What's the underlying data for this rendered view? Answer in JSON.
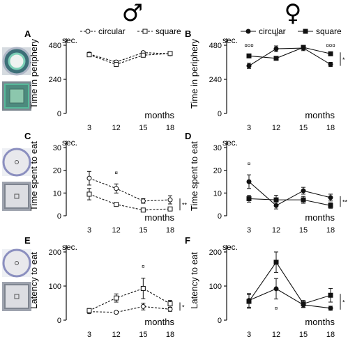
{
  "header": {
    "male_symbol": "♂",
    "female_symbol": "♀"
  },
  "chart_data": [
    {
      "panel": "A",
      "type": "line",
      "ylabel": "Time in periphery",
      "unit_label": "sec.",
      "xlabel": "months",
      "x": [
        3,
        12,
        15,
        18
      ],
      "yticks": [
        0,
        240,
        480
      ],
      "ylim": [
        0,
        480
      ],
      "legend": "top",
      "series": [
        {
          "name": "circular",
          "style": "dashed",
          "marker": "open-circle",
          "values": [
            418,
            362,
            428,
            420
          ],
          "err": [
            12,
            12,
            10,
            8
          ]
        },
        {
          "name": "square",
          "style": "dashed",
          "marker": "open-square",
          "values": [
            413,
            345,
            410,
            422
          ],
          "err": [
            12,
            14,
            12,
            8
          ]
        }
      ],
      "sig_marks": [],
      "side_mark": ""
    },
    {
      "panel": "B",
      "type": "line",
      "ylabel": "Time in periphery",
      "unit_label": "sec.",
      "xlabel": "months",
      "x": [
        3,
        12,
        15,
        18
      ],
      "yticks": [
        0,
        240,
        480
      ],
      "ylim": [
        0,
        480
      ],
      "legend": "top",
      "series": [
        {
          "name": "circular",
          "style": "solid",
          "marker": "filled-circle",
          "values": [
            335,
            455,
            460,
            345
          ],
          "err": [
            18,
            20,
            18,
            15
          ]
        },
        {
          "name": "square",
          "style": "solid",
          "marker": "filled-square",
          "values": [
            405,
            388,
            465,
            420
          ],
          "err": [
            8,
            10,
            8,
            8
          ]
        }
      ],
      "sig_marks": [
        {
          "x": 3,
          "y": 465,
          "text": "¤¤¤"
        },
        {
          "x": 12,
          "y": 540,
          "text": "¤"
        },
        {
          "x": 18,
          "y": 465,
          "text": "¤¤¤"
        }
      ],
      "side_mark": "*"
    },
    {
      "panel": "C",
      "type": "line",
      "ylabel": "Time spent to eat",
      "unit_label": "sec.",
      "xlabel": "months",
      "x": [
        3,
        12,
        15,
        18
      ],
      "yticks": [
        0,
        10,
        20,
        30
      ],
      "ylim": [
        0,
        30
      ],
      "series": [
        {
          "name": "circular",
          "style": "dashed",
          "marker": "open-circle",
          "values": [
            16.5,
            12,
            6.5,
            7
          ],
          "err": [
            3,
            2,
            1,
            1.8
          ]
        },
        {
          "name": "square",
          "style": "dashed",
          "marker": "open-square",
          "values": [
            9.5,
            5,
            2.5,
            3
          ],
          "err": [
            2.5,
            0.8,
            0.8,
            0.8
          ]
        }
      ],
      "sig_marks": [
        {
          "x": 12,
          "y": 18,
          "text": "¤"
        }
      ],
      "side_mark": "**"
    },
    {
      "panel": "D",
      "type": "line",
      "ylabel": "Time spent to eat",
      "unit_label": "sec.",
      "xlabel": "months",
      "x": [
        3,
        12,
        15,
        18
      ],
      "yticks": [
        0,
        10,
        20,
        30
      ],
      "ylim": [
        0,
        30
      ],
      "series": [
        {
          "name": "circular",
          "style": "solid",
          "marker": "filled-circle",
          "values": [
            15,
            4.5,
            11,
            8
          ],
          "err": [
            3,
            1.5,
            1.5,
            1.5
          ]
        },
        {
          "name": "square",
          "style": "solid",
          "marker": "filled-square",
          "values": [
            7.5,
            7,
            7,
            4.5
          ],
          "err": [
            1.5,
            2,
            1.5,
            1.2
          ]
        }
      ],
      "sig_marks": [
        {
          "x": 3,
          "y": 22,
          "text": "¤"
        }
      ],
      "side_mark": "**"
    },
    {
      "panel": "E",
      "type": "line",
      "ylabel": "Latency to eat",
      "unit_label": "sec.",
      "xlabel": "months",
      "x": [
        3,
        12,
        15,
        18
      ],
      "yticks": [
        0,
        100,
        200
      ],
      "ylim": [
        0,
        200
      ],
      "series": [
        {
          "name": "circular",
          "style": "dashed",
          "marker": "open-circle",
          "values": [
            25,
            23,
            40,
            32
          ],
          "err": [
            5,
            3,
            10,
            6
          ]
        },
        {
          "name": "square",
          "style": "dashed",
          "marker": "open-square",
          "values": [
            28,
            65,
            93,
            48
          ],
          "err": [
            6,
            12,
            30,
            10
          ]
        }
      ],
      "sig_marks": [
        {
          "x": 15,
          "y": 152,
          "text": "¤"
        }
      ],
      "side_mark": "*"
    },
    {
      "panel": "F",
      "type": "line",
      "ylabel": "Latency to eat",
      "unit_label": "sec.",
      "xlabel": "months",
      "x": [
        3,
        12,
        15,
        18
      ],
      "yticks": [
        0,
        100,
        200
      ],
      "ylim": [
        0,
        200
      ],
      "series": [
        {
          "name": "circular",
          "style": "solid",
          "marker": "filled-circle",
          "values": [
            58,
            92,
            45,
            35
          ],
          "err": [
            20,
            30,
            8,
            6
          ]
        },
        {
          "name": "square",
          "style": "solid",
          "marker": "filled-square",
          "values": [
            55,
            170,
            48,
            73
          ],
          "err": [
            20,
            30,
            10,
            20
          ]
        }
      ],
      "sig_marks": [
        {
          "x": 12,
          "y": 30,
          "text": "¤"
        }
      ],
      "side_mark": "*"
    }
  ]
}
